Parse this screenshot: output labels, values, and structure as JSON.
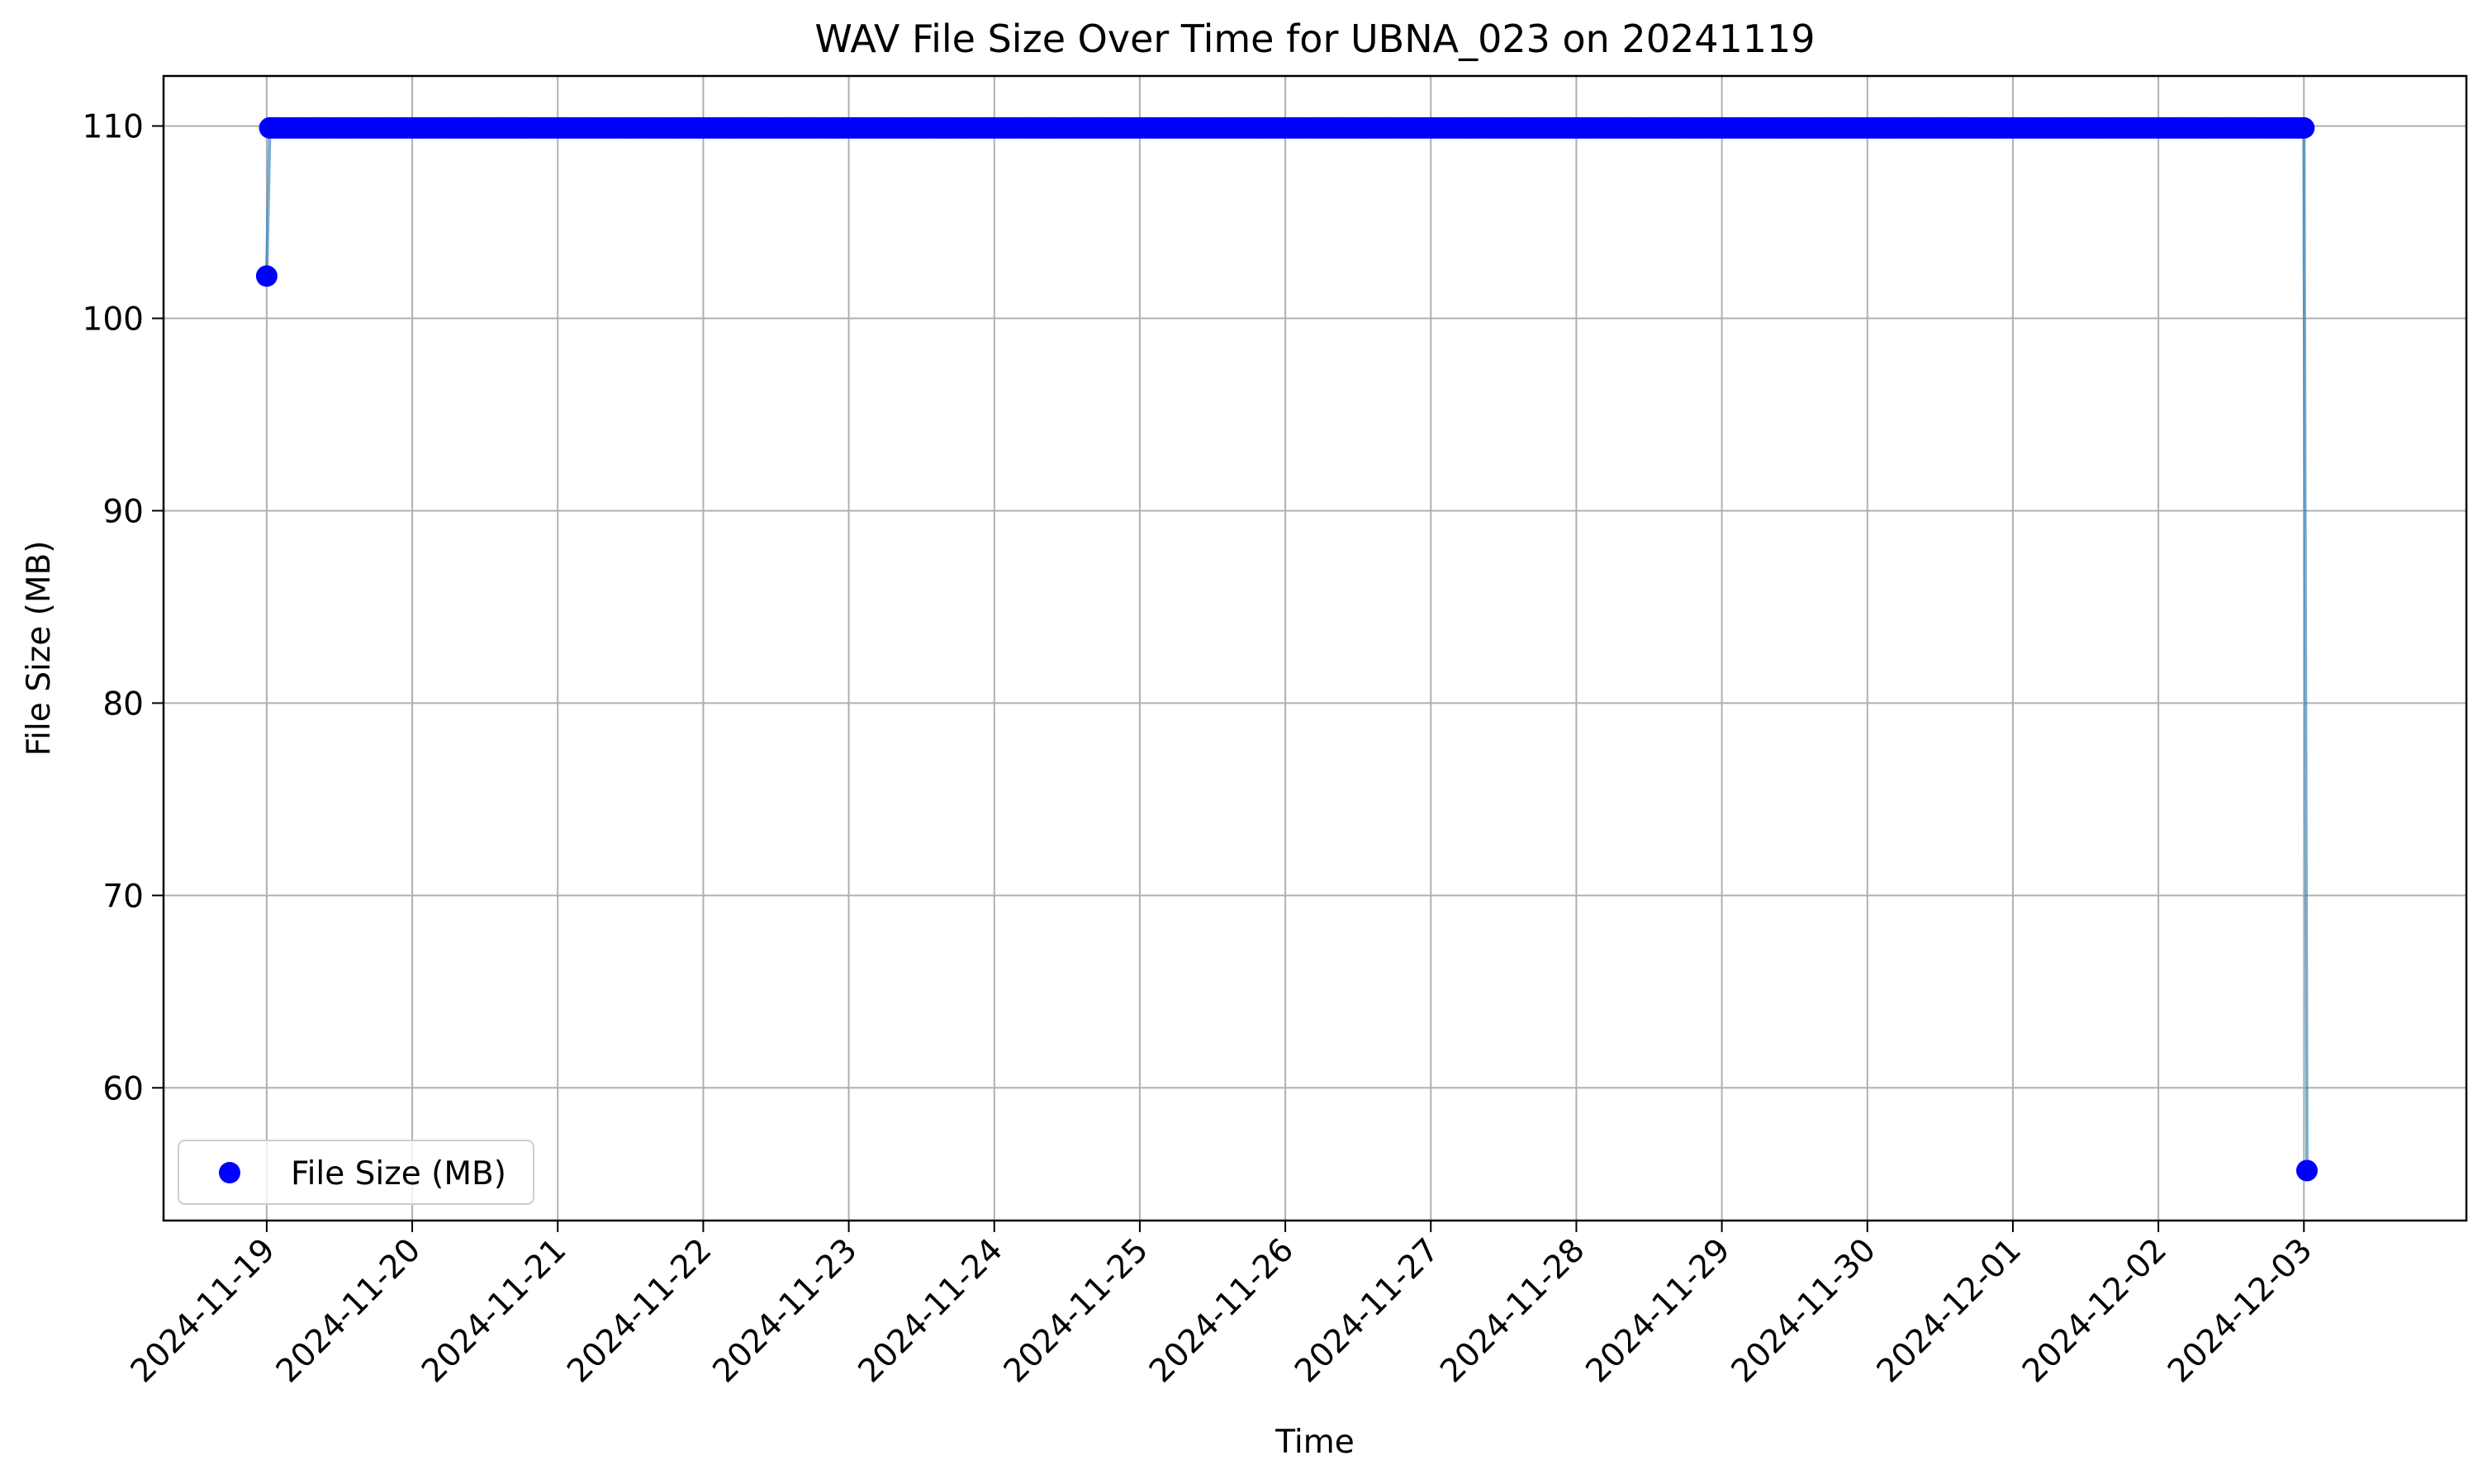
{
  "chart_data": {
    "type": "scatter",
    "title": "WAV File Size Over Time for UBNA_023 on 20241119",
    "xlabel": "Time",
    "ylabel": "File Size (MB)",
    "x_axis_type": "date",
    "xlim": [
      "2024-11-18T06:59",
      "2024-12-04T02:48"
    ],
    "ylim": [
      53.1,
      112.6
    ],
    "xticks": [
      "2024-11-19",
      "2024-11-20",
      "2024-11-21",
      "2024-11-22",
      "2024-11-23",
      "2024-11-24",
      "2024-11-25",
      "2024-11-26",
      "2024-11-27",
      "2024-11-28",
      "2024-11-29",
      "2024-11-30",
      "2024-12-01",
      "2024-12-02",
      "2024-12-03"
    ],
    "yticks": [
      60,
      70,
      80,
      90,
      100,
      110
    ],
    "grid": true,
    "legend": {
      "position": "lower left",
      "entries": [
        "File Size (MB)"
      ]
    },
    "colors": {
      "marker": "#0000ff",
      "line": "#1f77b4"
    },
    "series": [
      {
        "name": "File Size (MB)",
        "start": "2024-11-19T00:00",
        "end": "2024-12-03T00:30",
        "first_value": 102.2,
        "steady_value": 109.9,
        "last_value": 55.7
      }
    ]
  }
}
